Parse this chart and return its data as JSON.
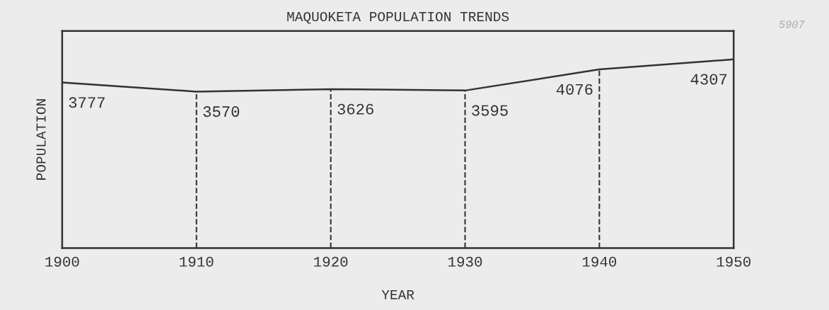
{
  "chart_data": {
    "type": "line",
    "title": "MAQUOKETA POPULATION TRENDS",
    "xlabel": "YEAR",
    "ylabel": "POPULATION",
    "x": [
      1900,
      1910,
      1920,
      1930,
      1940,
      1950
    ],
    "series": [
      {
        "color": "#333333",
        "values": [
          3777,
          3570,
          3626,
          3595,
          4076,
          4307
        ]
      }
    ],
    "data_labels": true,
    "xlim": [
      1900,
      1950
    ],
    "xticks": [
      1900,
      1910,
      1920,
      1930,
      1940,
      1950
    ],
    "annotations": [
      "5907"
    ],
    "grid": "x",
    "legend": false,
    "marker": "none",
    "line_style": "solid",
    "tick_labels": "x"
  }
}
